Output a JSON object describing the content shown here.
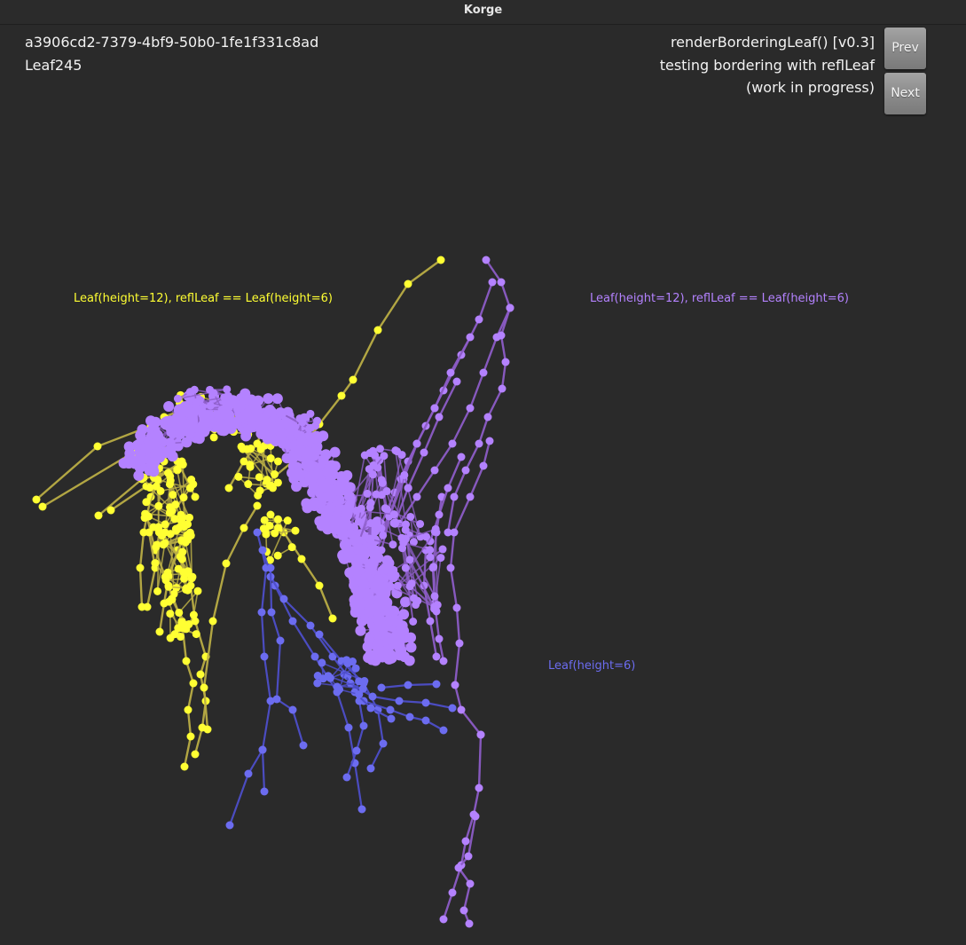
{
  "window": {
    "title": "Korge"
  },
  "info": {
    "id": "a3906cd2-7379-4bf9-50b0-1fe1f331c8ad",
    "leaf_name": "Leaf245",
    "function": "renderBorderingLeaf() [v0.3]",
    "description": "testing bordering with reflLeaf",
    "status": "(work in progress)"
  },
  "nav": {
    "prev_label": "Prev",
    "next_label": "Next"
  },
  "labels": {
    "yellow": "Leaf(height=12), reflLeaf == Leaf(height=6)",
    "purple": "Leaf(height=12), reflLeaf == Leaf(height=6)",
    "blue": "Leaf(height=6)"
  },
  "colors": {
    "yellow": "#ffff33",
    "yellow_edge": "#b9ad45",
    "purple": "#b482ff",
    "purple_edge": "#8c5cc6",
    "blue": "#6c6cf0",
    "blue_edge": "#4d4ec9"
  }
}
